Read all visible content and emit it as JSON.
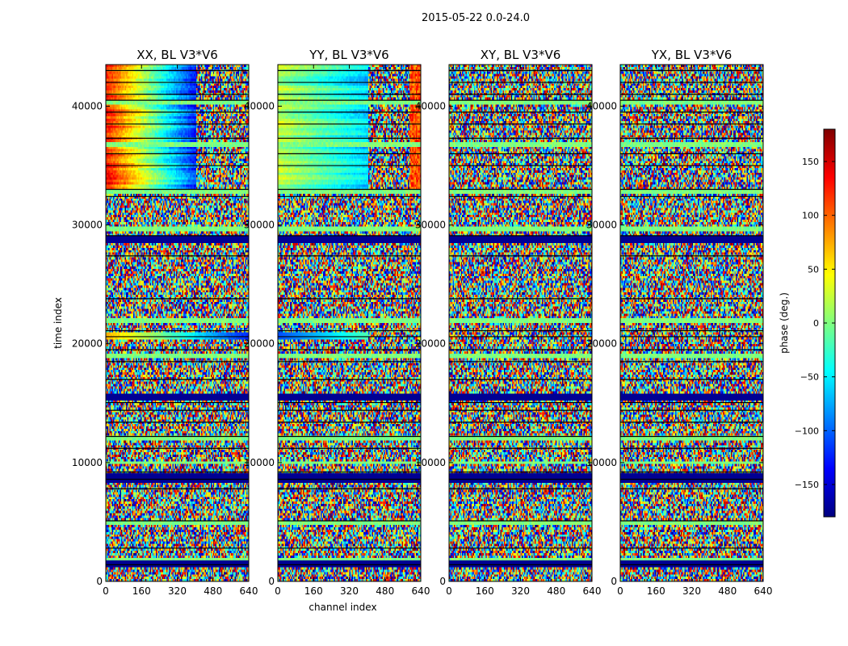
{
  "figure": {
    "suptitle": "2015-05-22 0.0-24.0"
  },
  "chart_data": [
    {
      "type": "heatmap",
      "title": "XX, BL V3*V6",
      "xlabel": "",
      "ylabel": "time index",
      "xlim": [
        0,
        640
      ],
      "ylim": [
        0,
        43500
      ],
      "xticks": [
        0,
        160,
        320,
        480,
        640
      ],
      "yticks": [
        0,
        10000,
        20000,
        30000,
        40000
      ],
      "pattern": "smooth_top_left"
    },
    {
      "type": "heatmap",
      "title": "YY, BL V3*V6",
      "xlabel": "channel index",
      "ylabel": "",
      "xlim": [
        0,
        640
      ],
      "ylim": [
        0,
        43500
      ],
      "xticks": [
        0,
        160,
        320,
        480,
        640
      ],
      "yticks": [
        0,
        10000,
        20000,
        30000,
        40000
      ],
      "pattern": "smooth_top_cyan"
    },
    {
      "type": "heatmap",
      "title": "XY, BL V3*V6",
      "xlabel": "",
      "ylabel": "",
      "xlim": [
        0,
        640
      ],
      "ylim": [
        0,
        43500
      ],
      "xticks": [
        0,
        160,
        320,
        480,
        640
      ],
      "yticks": [
        0,
        10000,
        20000,
        30000,
        40000
      ],
      "pattern": "noise"
    },
    {
      "type": "heatmap",
      "title": "YX, BL V3*V6",
      "xlabel": "",
      "ylabel": "",
      "xlim": [
        0,
        640
      ],
      "ylim": [
        0,
        43500
      ],
      "xticks": [
        0,
        160,
        320,
        480,
        640
      ],
      "yticks": [
        0,
        10000,
        20000,
        30000,
        40000
      ],
      "pattern": "noise"
    }
  ],
  "colorbar": {
    "label": "phase (deg.)",
    "range": [
      -180,
      180
    ],
    "ticks": [
      -150,
      -100,
      -50,
      0,
      50,
      100,
      150
    ],
    "tick_labels": [
      "−150",
      "−100",
      "−50",
      "0",
      "50",
      "100",
      "150"
    ],
    "colormap": "jet",
    "colormap_stops": [
      "#00007f",
      "#0000ff",
      "#00ffff",
      "#7fff7f",
      "#ffff00",
      "#ff0000",
      "#7f0000"
    ]
  },
  "structure": {
    "flag_rows": [
      1500,
      8700,
      15500,
      28800
    ],
    "black_rows": [
      1400,
      2800,
      5100,
      7800,
      8600,
      9200,
      11200,
      12200,
      13400,
      14400,
      15050,
      17000,
      18500,
      19500,
      20600,
      21100,
      23800,
      27400,
      29100,
      32400,
      33000,
      35000,
      36000,
      37300,
      38500,
      39500,
      40500,
      41000,
      42000,
      43000
    ],
    "green_bands": [
      1750,
      5000,
      9000,
      10000,
      12000,
      19000,
      21900,
      29700,
      32800,
      36700,
      40300
    ]
  }
}
